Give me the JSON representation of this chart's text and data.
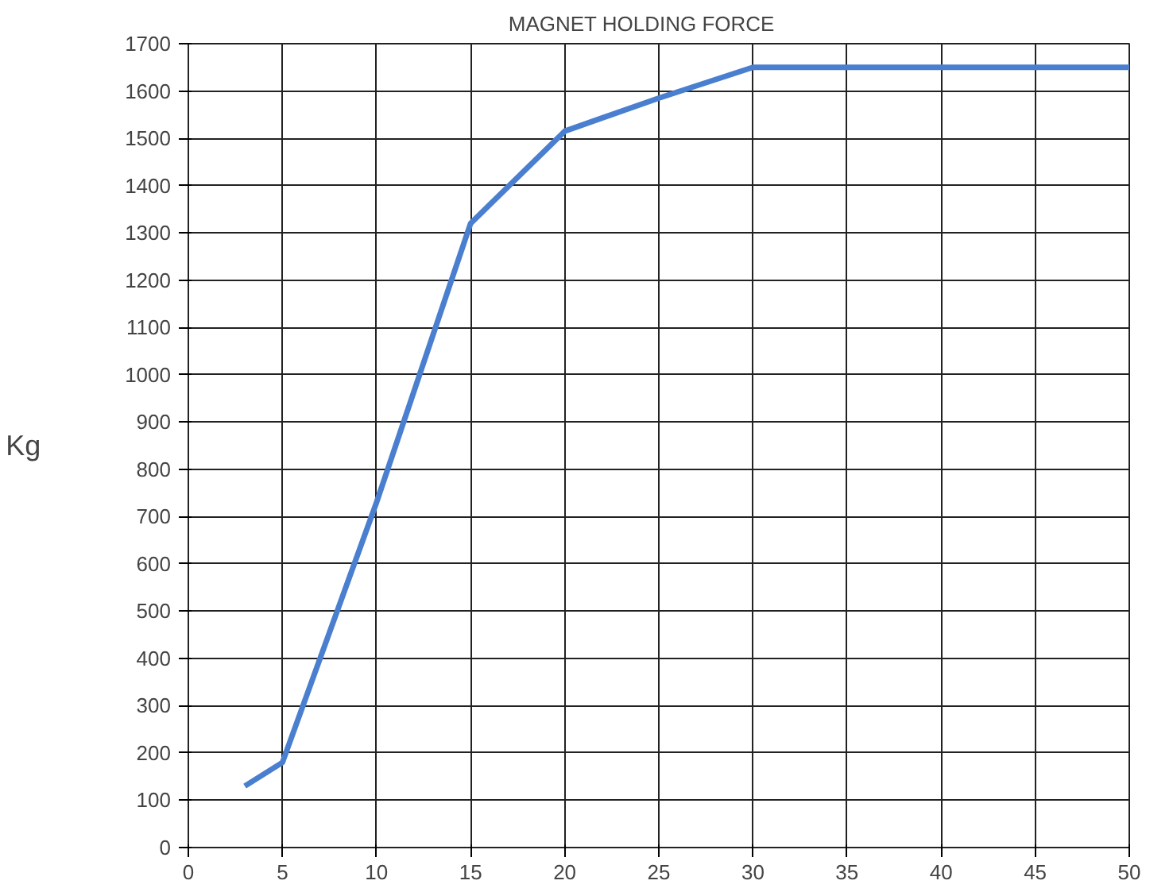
{
  "chart_data": {
    "type": "line",
    "title": "MAGNET    HOLDING    FORCE",
    "ylabel": "Kg",
    "x": [
      3,
      5,
      10,
      15,
      20,
      25,
      30,
      35,
      40,
      45,
      50
    ],
    "series": [
      {
        "color": "#4a7fd0",
        "values": [
          130,
          180,
          730,
          1320,
          1515,
          1585,
          1650,
          1650,
          1650,
          1650,
          1650
        ]
      }
    ],
    "xlim": [
      0,
      50
    ],
    "xticks": [
      0,
      5,
      10,
      15,
      20,
      25,
      30,
      35,
      40,
      45,
      50
    ],
    "ylim": [
      0,
      1700
    ],
    "yticks": [
      0,
      100,
      200,
      300,
      400,
      500,
      600,
      700,
      800,
      900,
      1000,
      1100,
      1200,
      1300,
      1400,
      1500,
      1600,
      1700
    ],
    "grid": true,
    "marker": "none",
    "line_style": "solid"
  }
}
